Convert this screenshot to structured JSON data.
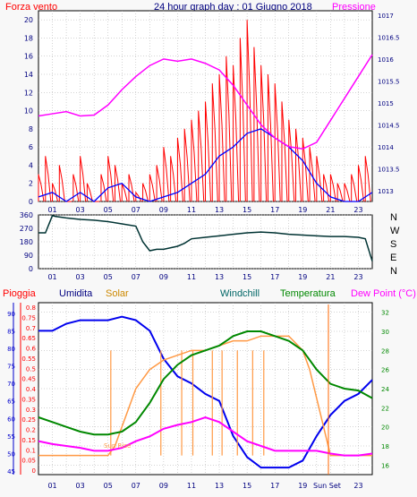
{
  "header": {
    "wind_label": "Forza vento",
    "title": "24 hour graph day : 01 Giugno 2018",
    "pressure_label": "Pressione"
  },
  "direction_labels": [
    "N",
    "W",
    "S",
    "E",
    "N"
  ],
  "bottom_header": {
    "rain": "Pioggia",
    "humidity": "Umidita",
    "solar": "Solar",
    "windchill": "Windchill",
    "temperature": "Temperatura",
    "dewpoint": "Dew Point (°C)"
  },
  "annotations": {
    "sunrise": "Sun Rise",
    "sunset": "Sun Set"
  },
  "colors": {
    "wind": "#ff0000",
    "gust": "#0000ff",
    "pressure": "#ff00ff",
    "direction": "#003333",
    "humidity": "#0000ee",
    "solar": "#ff9944",
    "temperature": "#008800",
    "dewpoint": "#ff00ff",
    "rain": "#ff0000",
    "grid": "#aaaaaa",
    "axis_label": "#000080"
  },
  "chart_data": [
    {
      "type": "line",
      "title": "24 hour graph day : 01 Giugno 2018",
      "x_ticks": [
        "01",
        "03",
        "05",
        "07",
        "09",
        "11",
        "13",
        "15",
        "17",
        "19",
        "21",
        "23"
      ],
      "y_left_ticks": [
        "0",
        "2",
        "4",
        "6",
        "8",
        "10",
        "12",
        "14",
        "16",
        "18",
        "20"
      ],
      "y_right_ticks": [
        "1013",
        "1013.5",
        "1014",
        "1014.5",
        "1015",
        "1015.5",
        "1016",
        "1016.5",
        "1017"
      ],
      "xlim": [
        0,
        24
      ],
      "ylim": [
        0,
        21
      ],
      "y2lim": [
        1012.75,
        1017.1
      ],
      "series": [
        {
          "name": "Forza vento",
          "x": [
            0,
            0.5,
            1,
            1.5,
            2,
            2.5,
            3,
            3.5,
            4,
            4.5,
            5,
            5.5,
            6,
            6.5,
            7,
            7.5,
            8,
            8.5,
            9,
            9.5,
            10,
            10.5,
            11,
            11.5,
            12,
            12.5,
            13,
            13.5,
            14,
            14.5,
            15,
            15.5,
            16,
            16.5,
            17,
            17.5,
            18,
            18.5,
            19,
            19.5,
            20,
            20.5,
            21,
            21.5,
            22,
            22.5,
            23,
            23.5
          ],
          "values": [
            3,
            5,
            2,
            4,
            0,
            3,
            5,
            2,
            0,
            3,
            5,
            4,
            2,
            3,
            1,
            2,
            3,
            4,
            6,
            5,
            7,
            8,
            9,
            10,
            11,
            13,
            14,
            16,
            15,
            18,
            20,
            17,
            15,
            14,
            13,
            11,
            9,
            8,
            7,
            6,
            5,
            3,
            3,
            2,
            2,
            3,
            4,
            5
          ]
        },
        {
          "name": "Raffica",
          "x": [
            0,
            1,
            2,
            3,
            4,
            5,
            6,
            7,
            8,
            9,
            10,
            11,
            12,
            13,
            14,
            15,
            16,
            17,
            18,
            19,
            20,
            21,
            22,
            23,
            24
          ],
          "values": [
            0.5,
            1,
            0,
            1,
            0,
            1.5,
            2,
            0.5,
            0,
            0.5,
            1,
            2,
            3,
            5,
            6,
            7.5,
            8,
            7,
            6,
            4.5,
            2,
            0.5,
            0,
            0,
            1
          ]
        },
        {
          "name": "Pressione",
          "x": [
            0,
            1,
            2,
            3,
            4,
            5,
            6,
            7,
            8,
            9,
            10,
            11,
            12,
            13,
            14,
            15,
            16,
            17,
            18,
            19,
            20,
            21,
            22,
            23,
            24
          ],
          "values": [
            1014.7,
            1014.75,
            1014.8,
            1014.7,
            1014.72,
            1014.95,
            1015.3,
            1015.6,
            1015.85,
            1016.0,
            1015.95,
            1016.0,
            1015.9,
            1015.75,
            1015.4,
            1014.95,
            1014.5,
            1014.2,
            1014.0,
            1013.95,
            1014.1,
            1014.6,
            1015.1,
            1015.6,
            1016.1
          ]
        }
      ]
    },
    {
      "type": "line",
      "x_ticks": [
        "01",
        "03",
        "05",
        "07",
        "09",
        "11",
        "13",
        "15",
        "17",
        "19",
        "21",
        "23"
      ],
      "y_ticks": [
        "0",
        "90",
        "180",
        "270",
        "360"
      ],
      "ylim": [
        0,
        360
      ],
      "xlim": [
        0,
        24
      ],
      "series": [
        {
          "name": "Direzione vento",
          "x": [
            0,
            0.5,
            1,
            1.2,
            2,
            3,
            4,
            5,
            6,
            7,
            7.5,
            8,
            8.5,
            9,
            10,
            10.5,
            11,
            12,
            13,
            14,
            15,
            16,
            17,
            18,
            19,
            20,
            21,
            22,
            23,
            23.5,
            24
          ],
          "values": [
            240,
            240,
            355,
            350,
            340,
            330,
            325,
            315,
            300,
            285,
            180,
            120,
            130,
            130,
            150,
            170,
            200,
            210,
            220,
            230,
            240,
            245,
            240,
            230,
            225,
            220,
            215,
            215,
            210,
            200,
            50
          ]
        }
      ]
    },
    {
      "type": "line",
      "x_ticks": [
        "01",
        "03",
        "05",
        "07",
        "09",
        "11",
        "13",
        "15",
        "17",
        "19",
        "21",
        "23"
      ],
      "y_left1_ticks": [
        "0",
        "0.05",
        "0.1",
        "0.15",
        "0.2",
        "0.25",
        "0.3",
        "0.35",
        "0.4",
        "0.45",
        "0.5",
        "0.55",
        "0.6",
        "0.65",
        "0.7",
        "0.75",
        "0.8"
      ],
      "y_left2_ticks": [
        "45",
        "50",
        "55",
        "60",
        "65",
        "70",
        "75",
        "80",
        "85",
        "90"
      ],
      "y_right_ticks": [
        "16",
        "18",
        "20",
        "22",
        "24",
        "26",
        "28",
        "30",
        "32"
      ],
      "y2lim": [
        15,
        33
      ],
      "ylim": [
        44,
        93
      ],
      "xlim": [
        0,
        24
      ],
      "series": [
        {
          "name": "Umidita",
          "x": [
            0,
            1,
            2,
            3,
            4,
            5,
            6,
            7,
            8,
            9,
            10,
            11,
            12,
            13,
            14,
            15,
            16,
            17,
            18,
            19,
            20,
            21,
            22,
            23,
            24
          ],
          "values": [
            85,
            85,
            87,
            88,
            88,
            88,
            89,
            88,
            85,
            77,
            72,
            70,
            67,
            65,
            55,
            49,
            46,
            46,
            46,
            48,
            55,
            61,
            65,
            67,
            71
          ]
        },
        {
          "name": "Temperatura",
          "x": [
            0,
            1,
            2,
            3,
            4,
            5,
            6,
            7,
            8,
            9,
            10,
            11,
            12,
            13,
            14,
            15,
            16,
            17,
            18,
            19,
            20,
            21,
            22,
            23,
            24
          ],
          "values": [
            21,
            20.5,
            20,
            19.5,
            19.2,
            19.2,
            19.5,
            20.5,
            22.5,
            25,
            26.5,
            27.5,
            28,
            28.5,
            29.5,
            30,
            30,
            29.5,
            29,
            28,
            26,
            24.5,
            24,
            23.8,
            23
          ]
        },
        {
          "name": "Dew Point",
          "x": [
            0,
            1,
            2,
            3,
            4,
            5,
            6,
            7,
            8,
            9,
            10,
            11,
            12,
            13,
            14,
            15,
            16,
            17,
            18,
            19,
            20,
            21,
            22,
            23,
            24
          ],
          "values": [
            18.5,
            18.2,
            18,
            17.8,
            17.5,
            17.5,
            17.8,
            18.5,
            19,
            19.8,
            20.2,
            20.5,
            21,
            20.5,
            19.5,
            18.5,
            18,
            17.5,
            17.5,
            17.5,
            17.5,
            17.2,
            17,
            17,
            17.2
          ]
        },
        {
          "name": "Solar",
          "x": [
            0,
            1,
            2,
            3,
            4,
            5,
            5.5,
            6,
            6.5,
            7,
            7.5,
            8,
            8.5,
            9,
            10,
            11,
            12,
            13,
            14,
            15,
            16,
            17,
            18,
            19,
            19.5,
            20,
            21,
            22,
            23,
            24
          ],
          "values": [
            17,
            17,
            17,
            17,
            17,
            17,
            18,
            20,
            22,
            24,
            25,
            26,
            26.5,
            27,
            27.5,
            28,
            28,
            28.5,
            29,
            29,
            29.5,
            29.5,
            29.5,
            28,
            26,
            23,
            17,
            17,
            17,
            17
          ]
        }
      ]
    }
  ]
}
